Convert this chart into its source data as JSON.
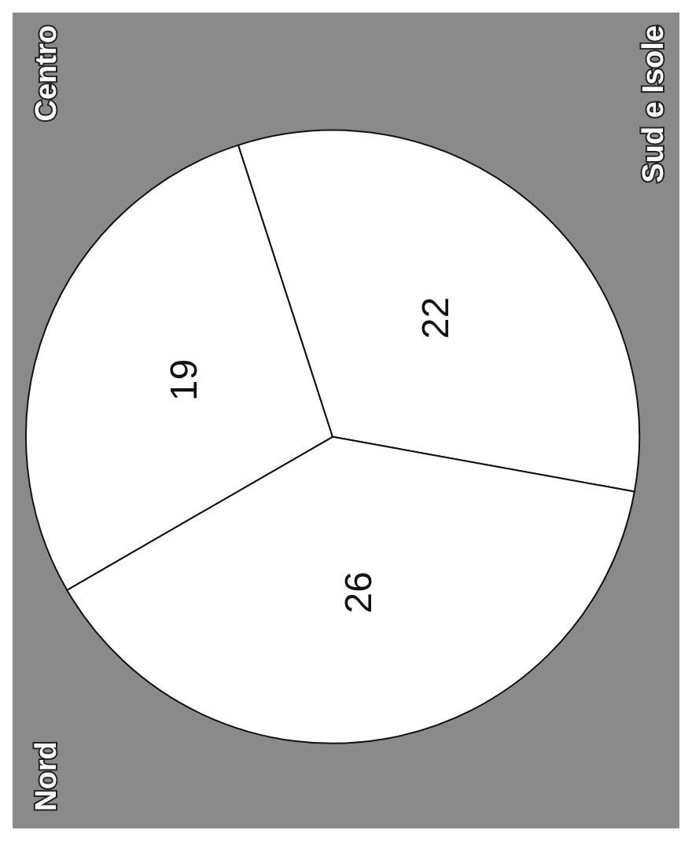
{
  "chart_data": {
    "type": "pie",
    "categories": [
      "Centro",
      "Sud e Isole",
      "Nord"
    ],
    "values": [
      19,
      22,
      26
    ],
    "colors": [
      "#ffffff",
      "#ffffff",
      "#ffffff"
    ],
    "data_labels": true
  }
}
